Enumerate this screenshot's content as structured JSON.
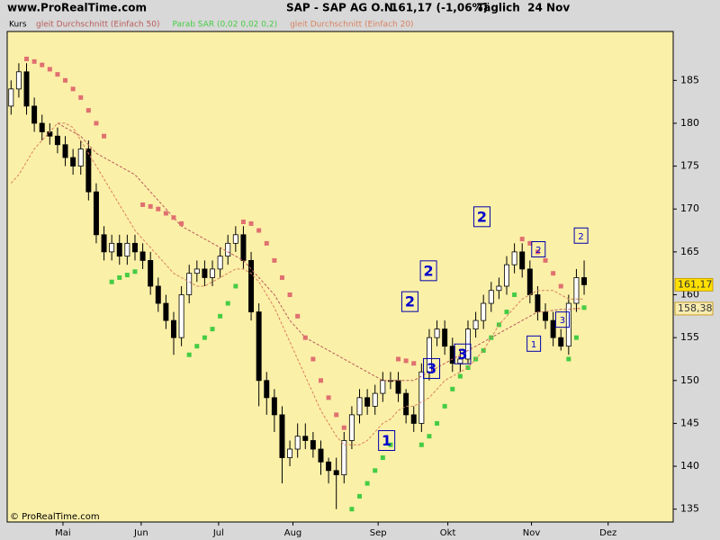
{
  "chart_data": {
    "type": "candlestick",
    "site": "www.ProRealTime.com",
    "title": "SAP - SAP AG O.N.",
    "quote": "161,17 (-1,06%)",
    "period": "Täglich  24 Nov",
    "price_label": "Kurs",
    "copyright": "© ProRealTime.com",
    "xlim": [
      -0.5,
      85.5
    ],
    "ylim": [
      133.5,
      190.7
    ],
    "yticks": [
      135,
      140,
      145,
      150,
      155,
      160,
      165,
      170,
      175,
      180,
      185
    ],
    "xticks": [
      {
        "value": 6.7,
        "label": "Mai"
      },
      {
        "value": 16.8,
        "label": "Jun"
      },
      {
        "value": 26.8,
        "label": "Jul"
      },
      {
        "value": 36.4,
        "label": "Aug"
      },
      {
        "value": 47.4,
        "label": "Sep"
      },
      {
        "value": 56.4,
        "label": "Okt"
      },
      {
        "value": 67.2,
        "label": "Nov"
      },
      {
        "value": 77.1,
        "label": "Dez"
      }
    ],
    "up_color": "#ffffff",
    "down_color": "#000000",
    "ohlc": [
      [
        182,
        185,
        181,
        184
      ],
      [
        184,
        187,
        183,
        186
      ],
      [
        186,
        187,
        181,
        182
      ],
      [
        182,
        183,
        179,
        180
      ],
      [
        180,
        181,
        178,
        179
      ],
      [
        179,
        180,
        177.5,
        178.5
      ],
      [
        178.5,
        179.5,
        176.5,
        177.5
      ],
      [
        177.5,
        178.5,
        175,
        176
      ],
      [
        176,
        177,
        174,
        175
      ],
      [
        175,
        178,
        174,
        177
      ],
      [
        177,
        178,
        171,
        172
      ],
      [
        172,
        173,
        166,
        167
      ],
      [
        167,
        168,
        164,
        165
      ],
      [
        165,
        167,
        164,
        166
      ],
      [
        166,
        167,
        163.5,
        164.5
      ],
      [
        164.5,
        167,
        163.5,
        166
      ],
      [
        166,
        167,
        164,
        165
      ],
      [
        165,
        166,
        163,
        164
      ],
      [
        164,
        165,
        160,
        161
      ],
      [
        161,
        162,
        158,
        159
      ],
      [
        159,
        160,
        156,
        157
      ],
      [
        157,
        158,
        153,
        155
      ],
      [
        155,
        161,
        154,
        160
      ],
      [
        160,
        163.5,
        159,
        162.5
      ],
      [
        162.5,
        164,
        161.5,
        163
      ],
      [
        163,
        164,
        161,
        162
      ],
      [
        162,
        164,
        161,
        163
      ],
      [
        163,
        165.5,
        162,
        164.5
      ],
      [
        164.5,
        167,
        163.5,
        166
      ],
      [
        166,
        168,
        165,
        167
      ],
      [
        167,
        168,
        163,
        164
      ],
      [
        164,
        165,
        157,
        158
      ],
      [
        158,
        159,
        147,
        150
      ],
      [
        150,
        151,
        146,
        148
      ],
      [
        148,
        149,
        144,
        146
      ],
      [
        146,
        147,
        138,
        141
      ],
      [
        141,
        143,
        140,
        142
      ],
      [
        142,
        145,
        141,
        143.5
      ],
      [
        143.5,
        145,
        142,
        143
      ],
      [
        143,
        144,
        141,
        142
      ],
      [
        142,
        143,
        139,
        140.5
      ],
      [
        140.5,
        141,
        138,
        139.5
      ],
      [
        139.5,
        141,
        135,
        139
      ],
      [
        139,
        144,
        138,
        143
      ],
      [
        143,
        147,
        142,
        146
      ],
      [
        146,
        149,
        145,
        148
      ],
      [
        148,
        149,
        146,
        147
      ],
      [
        147,
        149.5,
        146,
        148.5
      ],
      [
        148.5,
        151,
        147.5,
        150
      ],
      [
        150,
        151,
        149,
        150
      ],
      [
        150,
        151,
        147.5,
        148.5
      ],
      [
        148.5,
        149,
        145,
        146
      ],
      [
        146,
        147,
        144,
        145
      ],
      [
        145,
        152,
        144,
        151
      ],
      [
        151,
        156,
        150,
        155
      ],
      [
        155,
        157,
        154,
        156
      ],
      [
        156,
        157,
        153,
        154
      ],
      [
        154,
        155,
        151,
        152
      ],
      [
        152,
        153.5,
        151,
        152.5
      ],
      [
        152.5,
        157,
        152,
        156
      ],
      [
        156,
        158,
        155,
        157
      ],
      [
        157,
        160,
        156,
        159
      ],
      [
        159,
        161.5,
        158,
        160.5
      ],
      [
        160.5,
        162,
        159.5,
        161
      ],
      [
        161,
        164.5,
        160,
        163.5
      ],
      [
        163.5,
        166,
        162.5,
        165
      ],
      [
        165,
        166,
        162,
        163
      ],
      [
        163,
        164,
        159,
        160
      ],
      [
        160,
        161,
        157,
        158
      ],
      [
        158,
        159,
        156,
        157
      ],
      [
        157,
        158,
        154,
        155
      ],
      [
        155,
        156,
        153.5,
        154
      ],
      [
        154,
        160,
        153,
        159
      ],
      [
        159,
        163,
        158,
        162
      ],
      [
        162,
        164,
        160,
        161.17
      ]
    ],
    "series": [
      {
        "name": "gleit Durchschnitt (Einfach 50)",
        "kind": "line",
        "color": "#b85a5a",
        "values": [
          null,
          null,
          null,
          null,
          null,
          null,
          180,
          179.5,
          179,
          178.5,
          177.5,
          176.5,
          176,
          175.5,
          175,
          174.5,
          174,
          173,
          172,
          171,
          170,
          169,
          168,
          167.5,
          167,
          166.5,
          166,
          165.5,
          165,
          164.5,
          164,
          163,
          162,
          161,
          160,
          158.5,
          157,
          156,
          155,
          154.5,
          154,
          153.5,
          153,
          152.5,
          152,
          151.5,
          151,
          150.5,
          150,
          150,
          150,
          150,
          150,
          150.5,
          151,
          151.5,
          152,
          152.5,
          153,
          153.5,
          154,
          154.5,
          155,
          155.5,
          156,
          156.5,
          157,
          157.5,
          158,
          158,
          158.2,
          158.3,
          158.3,
          158.4,
          158.38
        ]
      },
      {
        "name": "Parab SAR (0,02 0,02 0,2)",
        "kind": "dots",
        "color": "#44cc44",
        "color_above": "#e07070",
        "values": [
          null,
          null,
          187.5,
          187.2,
          186.8,
          186.3,
          185.7,
          185,
          184,
          183,
          181.5,
          180,
          178.5,
          161.5,
          162,
          162.3,
          162.7,
          170.5,
          170.3,
          170,
          169.5,
          169,
          168.3,
          153,
          154,
          155,
          156,
          157.5,
          159,
          161,
          168.5,
          168.3,
          167.5,
          166,
          164,
          162,
          160,
          157.5,
          155,
          152.5,
          150,
          148,
          146,
          144.5,
          135,
          136.5,
          138,
          139.5,
          141,
          142.5,
          152.5,
          152.3,
          152,
          142.5,
          143.5,
          145,
          147,
          149,
          150.5,
          151.5,
          152.5,
          153.5,
          155,
          156.5,
          158,
          160,
          166.5,
          166,
          165,
          164,
          162.5,
          161,
          152.5,
          155,
          158.5
        ]
      },
      {
        "name": "gleit Durchschnitt (Einfach 20)",
        "kind": "line",
        "color": "#d88060",
        "values": [
          173,
          174,
          175.5,
          177,
          178,
          179,
          180,
          180,
          179.5,
          178,
          176.5,
          175,
          173.5,
          172,
          170.5,
          169,
          167.5,
          166.5,
          165.5,
          164.5,
          163.5,
          162.5,
          162,
          161.5,
          161,
          161,
          161.5,
          162,
          162.5,
          163,
          163,
          162.5,
          161.5,
          160,
          158.5,
          156.5,
          154.5,
          152.5,
          150.5,
          148.5,
          146.5,
          145,
          143.5,
          142.5,
          142.5,
          142.5,
          143,
          144,
          145,
          145.5,
          146.5,
          147,
          147,
          147.5,
          148,
          149,
          150,
          150.5,
          151,
          151.5,
          152.5,
          153.5,
          155,
          156.5,
          157.5,
          158.5,
          159.5,
          160,
          160.5,
          160.5,
          160.5,
          160,
          159.5,
          159.5,
          159.5
        ]
      }
    ],
    "price_markers": [
      {
        "value": 161.17,
        "label": "161,17",
        "color": "#ffe000"
      },
      {
        "value": 158.38,
        "label": "158,38",
        "color": "#f8ecb0"
      }
    ],
    "annotations": [
      {
        "text": "1",
        "x": 48.5,
        "y": 143.0,
        "style": "large"
      },
      {
        "text": "3",
        "x": 54.3,
        "y": 151.4,
        "style": "large"
      },
      {
        "text": "2",
        "x": 51.5,
        "y": 159.2,
        "style": "large"
      },
      {
        "text": "2",
        "x": 53.9,
        "y": 162.8,
        "style": "large"
      },
      {
        "text": "3",
        "x": 58.3,
        "y": 153.1,
        "style": "large"
      },
      {
        "text": "2",
        "x": 60.8,
        "y": 169.1,
        "style": "large"
      },
      {
        "text": "1",
        "x": 67.5,
        "y": 154.3,
        "style": "small"
      },
      {
        "text": "2",
        "x": 68.1,
        "y": 165.3,
        "style": "small"
      },
      {
        "text": "3",
        "x": 71.2,
        "y": 157.1,
        "style": "small"
      },
      {
        "text": "2",
        "x": 73.6,
        "y": 166.9,
        "style": "small"
      }
    ]
  }
}
